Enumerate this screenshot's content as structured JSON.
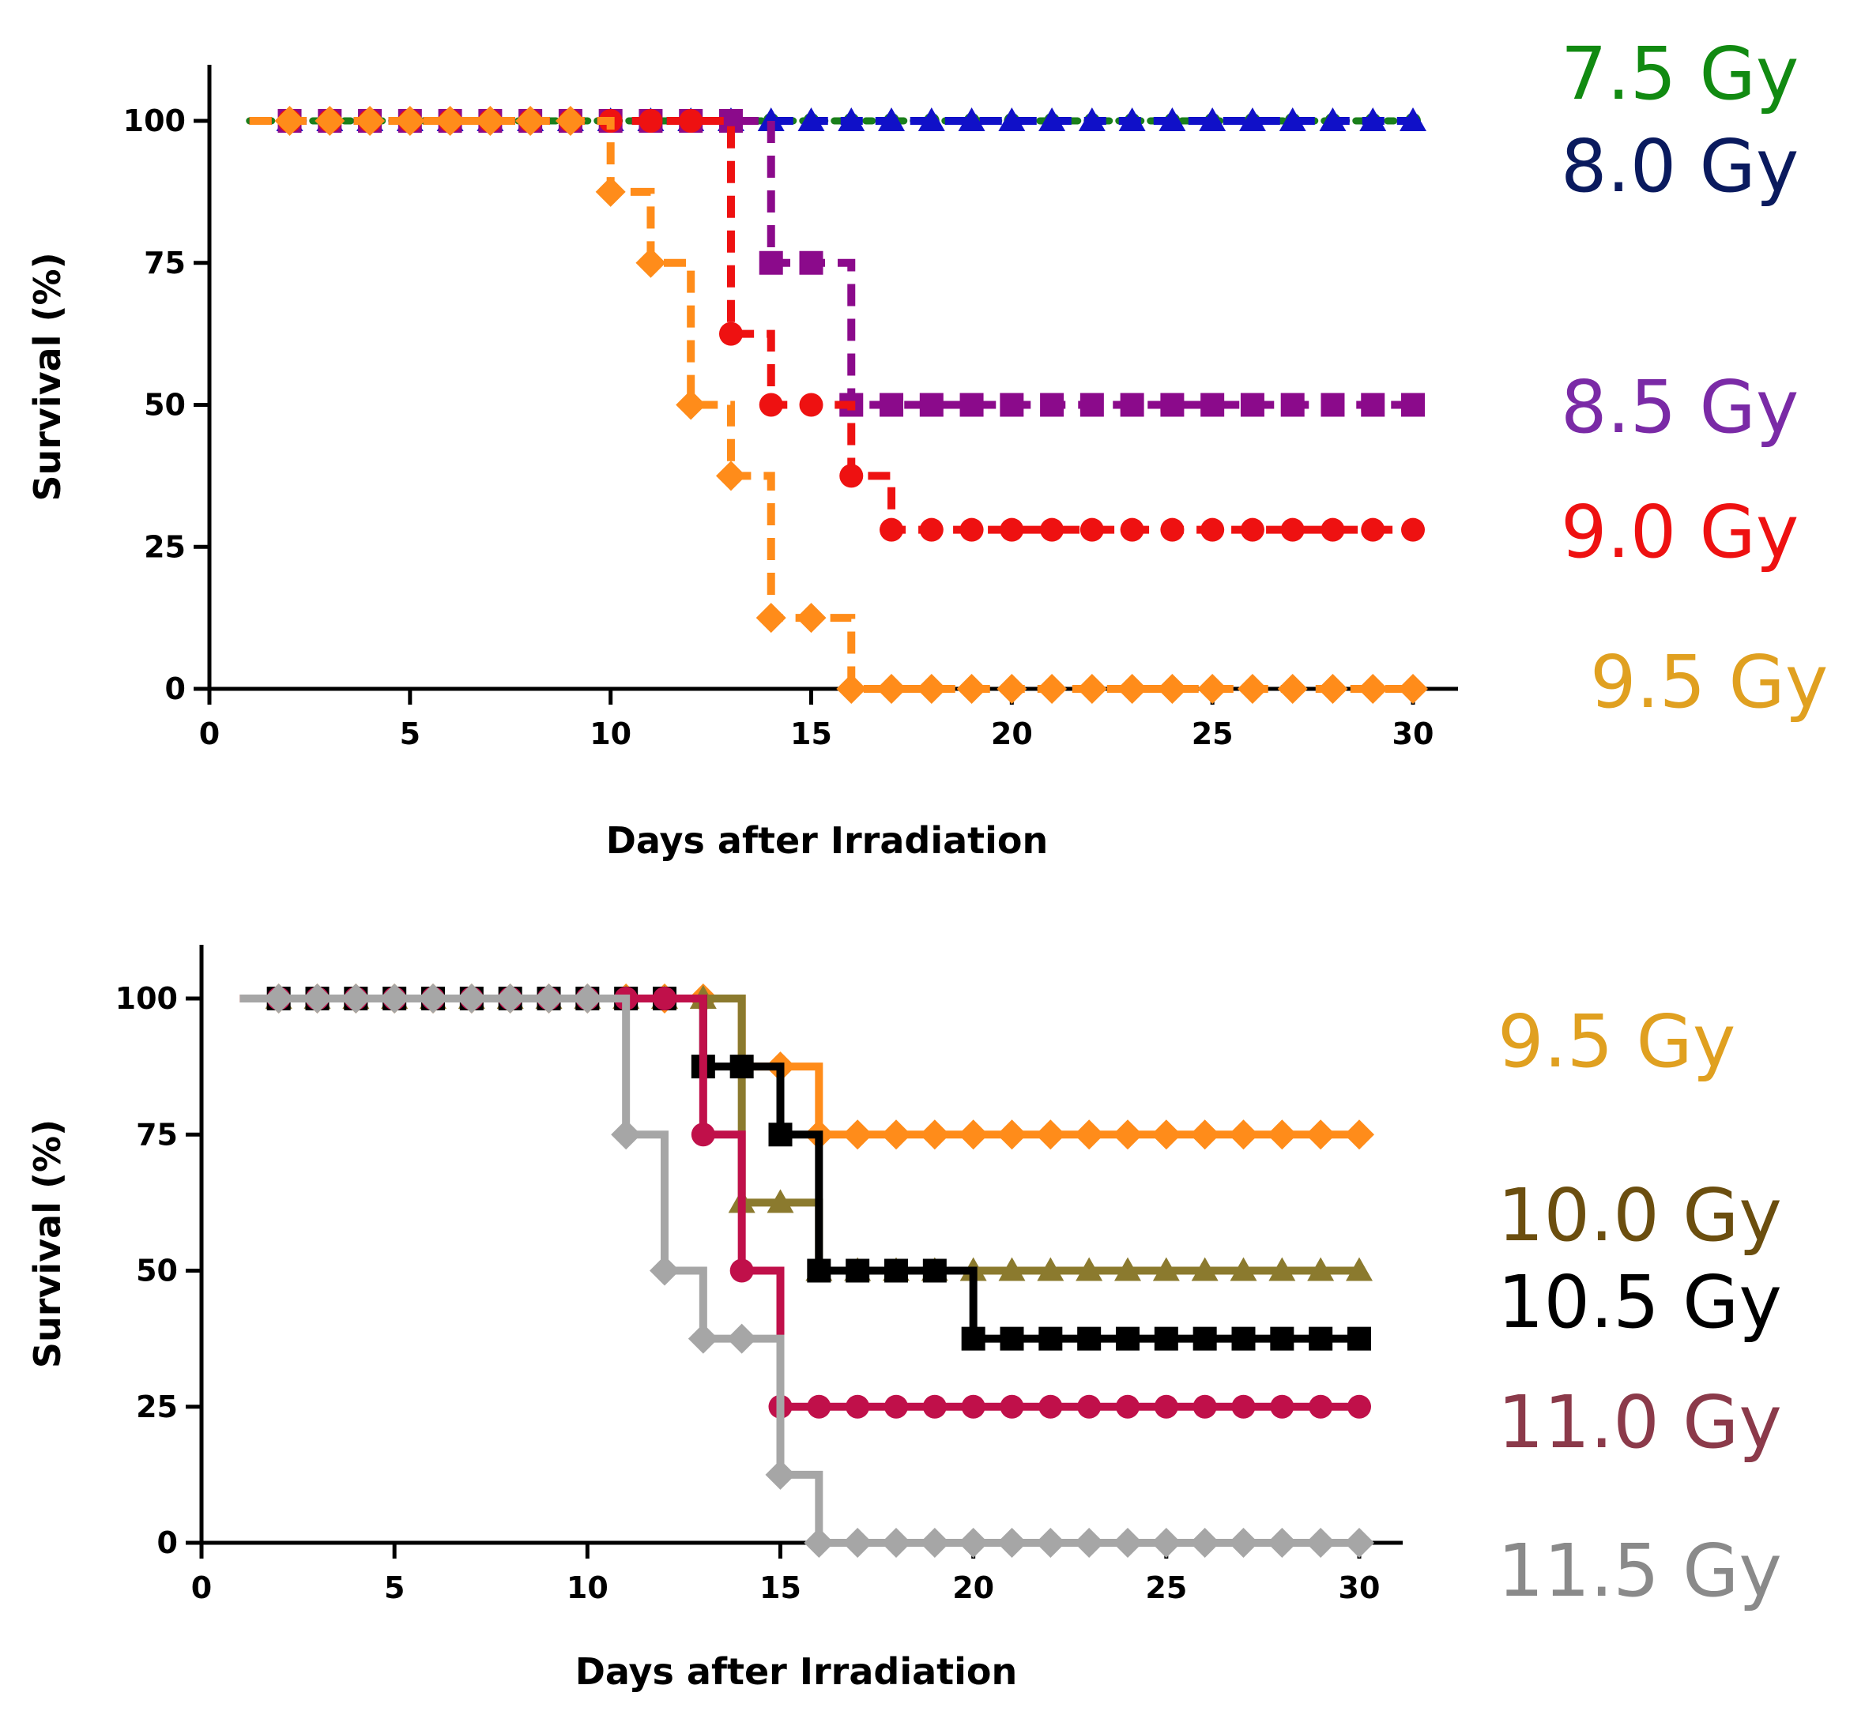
{
  "chart_data": [
    {
      "type": "line",
      "subtype": "kaplan-meier step",
      "xlabel": "Days after Irradiation",
      "ylabel": "Survival (%)",
      "xlim": [
        0,
        31
      ],
      "ylim": [
        0,
        110
      ],
      "xticks": [
        0,
        5,
        10,
        15,
        20,
        25,
        30
      ],
      "yticks": [
        0,
        25,
        50,
        75,
        100
      ],
      "series": [
        {
          "name": "7.5 Gy",
          "color": "#1a7f1a",
          "line": "dotted",
          "marker": "circle-small",
          "x": [
            1,
            30
          ],
          "y": [
            100,
            100
          ]
        },
        {
          "name": "8.0 Gy",
          "color": "#1010c8",
          "line": "dashed",
          "marker": "triangle",
          "x": [
            1,
            30
          ],
          "y": [
            100,
            100
          ]
        },
        {
          "name": "8.5 Gy",
          "color": "#8b0a8b",
          "line": "dashed",
          "marker": "square",
          "x": [
            1,
            14,
            16,
            30
          ],
          "y": [
            100,
            75,
            50,
            50
          ]
        },
        {
          "name": "9.0 Gy",
          "color": "#ee1111",
          "line": "dashed",
          "marker": "circle",
          "x": [
            1,
            13,
            14,
            16,
            17,
            30
          ],
          "y": [
            100,
            62.5,
            50,
            37.5,
            28,
            28
          ]
        },
        {
          "name": "9.5 Gy",
          "color": "#ff8c1a",
          "line": "dashed",
          "marker": "diamond",
          "x": [
            1,
            10,
            11,
            12,
            13,
            14,
            16,
            30
          ],
          "y": [
            100,
            87.5,
            75,
            50,
            37.5,
            12.5,
            0,
            0
          ]
        }
      ],
      "legend": [
        {
          "label": "7.5 Gy",
          "color": "#118a11"
        },
        {
          "label": "8.0 Gy",
          "color": "#0a1a5e"
        },
        {
          "label": "8.5 Gy",
          "color": "#7a2aa6"
        },
        {
          "label": "9.0 Gy",
          "color": "#ee1111"
        },
        {
          "label": "9.5 Gy",
          "color": "#e0a020"
        }
      ]
    },
    {
      "type": "line",
      "subtype": "kaplan-meier step",
      "xlabel": "Days after Irradiation",
      "ylabel": "Survival (%)",
      "xlim": [
        0,
        31
      ],
      "ylim": [
        0,
        110
      ],
      "xticks": [
        0,
        5,
        10,
        15,
        20,
        25,
        30
      ],
      "yticks": [
        0,
        25,
        50,
        75,
        100
      ],
      "series": [
        {
          "name": "9.5 Gy",
          "color": "#ff8c1a",
          "line": "solid",
          "marker": "diamond",
          "x": [
            1,
            14,
            16,
            30
          ],
          "y": [
            100,
            87.5,
            75,
            75
          ]
        },
        {
          "name": "10.0 Gy",
          "color": "#8b7a2e",
          "line": "solid",
          "marker": "triangle",
          "x": [
            1,
            14,
            16,
            20,
            30
          ],
          "y": [
            100,
            62.5,
            50,
            50,
            50
          ]
        },
        {
          "name": "10.5 Gy",
          "color": "#000000",
          "line": "solid",
          "marker": "square",
          "x": [
            1,
            13,
            15,
            16,
            20,
            30
          ],
          "y": [
            100,
            87.5,
            75,
            50,
            37.5,
            37.5
          ]
        },
        {
          "name": "11.0 Gy",
          "color": "#c0104a",
          "line": "solid",
          "marker": "circle",
          "x": [
            1,
            13,
            14,
            15,
            30
          ],
          "y": [
            100,
            75,
            50,
            25,
            25
          ]
        },
        {
          "name": "11.5 Gy",
          "color": "#a6a6a6",
          "line": "solid",
          "marker": "diamond",
          "x": [
            1,
            11,
            12,
            13,
            15,
            16,
            30
          ],
          "y": [
            100,
            75,
            50,
            37.5,
            12.5,
            0,
            0
          ]
        }
      ],
      "legend": [
        {
          "label": "9.5 Gy",
          "color": "#e0a020"
        },
        {
          "label": "10.0 Gy",
          "color": "#6b4e0f"
        },
        {
          "label": "10.5 Gy",
          "color": "#000000"
        },
        {
          "label": "11.0 Gy",
          "color": "#8b3a4a"
        },
        {
          "label": "11.5 Gy",
          "color": "#8a8a8a"
        }
      ]
    }
  ]
}
